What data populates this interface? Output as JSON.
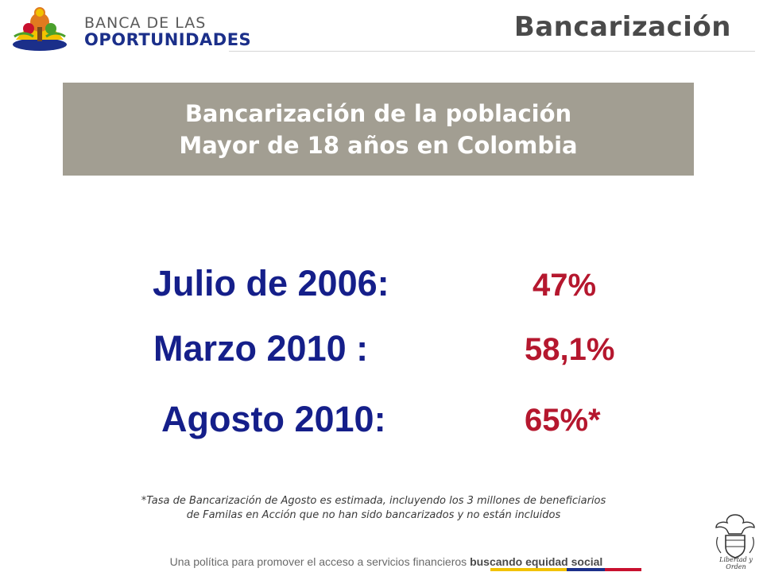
{
  "header": {
    "logo_line1": "BANCA DE LAS",
    "logo_line2": "OPORTUNIDADES",
    "section_title": "Bancarización"
  },
  "banner": {
    "line1": "Bancarización de la población",
    "line2": "Mayor de 18 años en Colombia"
  },
  "stats": [
    {
      "label": "Julio de 2006:",
      "value": "47%"
    },
    {
      "label": "Marzo 2010 :",
      "value": "58,1%"
    },
    {
      "label": "Agosto 2010:",
      "value": "65%*"
    }
  ],
  "footnote": {
    "line1": "*Tasa de Bancarización de Agosto es estimada, incluyendo los 3 millones de beneficiarios",
    "line2": "de Familas en Acción  que no han sido bancarizados y no están incluidos"
  },
  "footer": {
    "text": "Una política para promover el acceso a servicios financieros ",
    "emphasis": "buscando equidad social"
  },
  "seal": {
    "caption": "Libertad y Orden"
  },
  "colors": {
    "banner_bg": "#a29e92",
    "label_blue": "#151f8a",
    "value_red": "#b5172e",
    "flag_yellow": "#f2c200",
    "flag_blue": "#1b2f8a",
    "flag_red": "#c8102e"
  }
}
